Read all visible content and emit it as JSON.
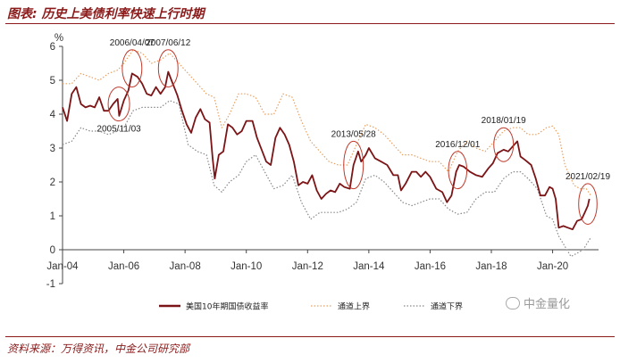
{
  "header": {
    "title": "图表: 历史上美债利率快速上行时期"
  },
  "footer": {
    "source": "资料来源：万得资讯，中金公司研究部"
  },
  "watermark": {
    "text": "中金量化",
    "icon": "wechat-icon"
  },
  "colors": {
    "series": "#7B1416",
    "upper": "#E8A060",
    "lower": "#888888",
    "circle": "#C0392B",
    "title": "#8B1A1A"
  },
  "chart_data": {
    "type": "line",
    "title": "历史上美债利率快速上行时期",
    "ylabel": "%",
    "ylim": [
      -1,
      6
    ],
    "yticks": [
      "-1",
      "0",
      "1",
      "2",
      "3",
      "4",
      "5",
      "6"
    ],
    "xlim": [
      2004.0,
      2021.5
    ],
    "xticks": [
      {
        "label": "Jan-04",
        "x": 2004
      },
      {
        "label": "Jan-06",
        "x": 2006
      },
      {
        "label": "Jan-08",
        "x": 2008
      },
      {
        "label": "Jan-10",
        "x": 2010
      },
      {
        "label": "Jan-12",
        "x": 2012
      },
      {
        "label": "Jan-14",
        "x": 2014
      },
      {
        "label": "Jan-16",
        "x": 2016
      },
      {
        "label": "Jan-18",
        "x": 2018
      },
      {
        "label": "Jan-20",
        "x": 2020
      }
    ],
    "series": [
      {
        "name": "美国10年期国债收益率",
        "style": "solid",
        "points": [
          [
            2004.0,
            4.2
          ],
          [
            2004.15,
            3.8
          ],
          [
            2004.3,
            4.6
          ],
          [
            2004.45,
            4.8
          ],
          [
            2004.6,
            4.3
          ],
          [
            2004.75,
            4.2
          ],
          [
            2004.9,
            4.25
          ],
          [
            2005.05,
            4.2
          ],
          [
            2005.2,
            4.5
          ],
          [
            2005.35,
            4.1
          ],
          [
            2005.5,
            4.1
          ],
          [
            2005.65,
            4.3
          ],
          [
            2005.8,
            4.45
          ],
          [
            2005.85,
            3.95
          ],
          [
            2006.0,
            4.4
          ],
          [
            2006.15,
            4.7
          ],
          [
            2006.27,
            5.2
          ],
          [
            2006.45,
            5.1
          ],
          [
            2006.6,
            4.9
          ],
          [
            2006.75,
            4.6
          ],
          [
            2006.9,
            4.55
          ],
          [
            2007.05,
            4.8
          ],
          [
            2007.2,
            4.6
          ],
          [
            2007.35,
            4.8
          ],
          [
            2007.45,
            5.25
          ],
          [
            2007.6,
            4.9
          ],
          [
            2007.75,
            4.55
          ],
          [
            2007.9,
            4.1
          ],
          [
            2008.05,
            3.7
          ],
          [
            2008.2,
            3.45
          ],
          [
            2008.35,
            3.9
          ],
          [
            2008.5,
            4.15
          ],
          [
            2008.65,
            3.85
          ],
          [
            2008.8,
            3.75
          ],
          [
            2008.9,
            2.7
          ],
          [
            2008.97,
            2.1
          ],
          [
            2009.1,
            2.8
          ],
          [
            2009.25,
            2.9
          ],
          [
            2009.4,
            3.7
          ],
          [
            2009.55,
            3.6
          ],
          [
            2009.7,
            3.4
          ],
          [
            2009.85,
            3.5
          ],
          [
            2010.0,
            3.8
          ],
          [
            2010.2,
            3.8
          ],
          [
            2010.35,
            3.3
          ],
          [
            2010.5,
            2.95
          ],
          [
            2010.65,
            2.6
          ],
          [
            2010.8,
            2.5
          ],
          [
            2010.95,
            3.3
          ],
          [
            2011.1,
            3.6
          ],
          [
            2011.25,
            3.4
          ],
          [
            2011.4,
            3.1
          ],
          [
            2011.55,
            2.6
          ],
          [
            2011.7,
            1.9
          ],
          [
            2011.85,
            2.0
          ],
          [
            2012.0,
            1.95
          ],
          [
            2012.15,
            2.2
          ],
          [
            2012.3,
            1.75
          ],
          [
            2012.45,
            1.5
          ],
          [
            2012.6,
            1.65
          ],
          [
            2012.75,
            1.75
          ],
          [
            2012.9,
            1.7
          ],
          [
            2013.05,
            1.95
          ],
          [
            2013.2,
            1.85
          ],
          [
            2013.38,
            1.8
          ],
          [
            2013.5,
            2.5
          ],
          [
            2013.65,
            2.9
          ],
          [
            2013.75,
            2.6
          ],
          [
            2013.9,
            2.8
          ],
          [
            2014.0,
            3.0
          ],
          [
            2014.2,
            2.7
          ],
          [
            2014.4,
            2.6
          ],
          [
            2014.6,
            2.5
          ],
          [
            2014.8,
            2.2
          ],
          [
            2014.95,
            2.2
          ],
          [
            2015.05,
            1.75
          ],
          [
            2015.2,
            1.95
          ],
          [
            2015.4,
            2.3
          ],
          [
            2015.55,
            2.3
          ],
          [
            2015.7,
            2.15
          ],
          [
            2015.85,
            2.3
          ],
          [
            2016.0,
            2.15
          ],
          [
            2016.2,
            1.8
          ],
          [
            2016.4,
            1.7
          ],
          [
            2016.55,
            1.4
          ],
          [
            2016.7,
            1.6
          ],
          [
            2016.85,
            2.3
          ],
          [
            2016.95,
            2.5
          ],
          [
            2017.1,
            2.45
          ],
          [
            2017.3,
            2.3
          ],
          [
            2017.5,
            2.2
          ],
          [
            2017.7,
            2.15
          ],
          [
            2017.9,
            2.4
          ],
          [
            2018.05,
            2.55
          ],
          [
            2018.2,
            2.85
          ],
          [
            2018.4,
            2.95
          ],
          [
            2018.55,
            2.9
          ],
          [
            2018.75,
            3.1
          ],
          [
            2018.85,
            3.2
          ],
          [
            2018.95,
            2.75
          ],
          [
            2019.1,
            2.65
          ],
          [
            2019.3,
            2.5
          ],
          [
            2019.45,
            2.1
          ],
          [
            2019.6,
            1.6
          ],
          [
            2019.75,
            1.6
          ],
          [
            2019.9,
            1.85
          ],
          [
            2020.0,
            1.8
          ],
          [
            2020.1,
            1.5
          ],
          [
            2020.2,
            0.65
          ],
          [
            2020.35,
            0.7
          ],
          [
            2020.5,
            0.65
          ],
          [
            2020.65,
            0.6
          ],
          [
            2020.8,
            0.85
          ],
          [
            2020.95,
            0.9
          ],
          [
            2021.05,
            1.1
          ],
          [
            2021.15,
            1.3
          ],
          [
            2021.2,
            1.5
          ]
        ]
      },
      {
        "name": "通道上界",
        "style": "dotted",
        "points": [
          [
            2004.0,
            4.9
          ],
          [
            2004.3,
            4.9
          ],
          [
            2004.6,
            5.2
          ],
          [
            2004.9,
            5.1
          ],
          [
            2005.2,
            5.0
          ],
          [
            2005.5,
            5.2
          ],
          [
            2005.8,
            5.3
          ],
          [
            2006.0,
            5.5
          ],
          [
            2006.3,
            5.9
          ],
          [
            2006.6,
            5.8
          ],
          [
            2006.9,
            5.5
          ],
          [
            2007.2,
            5.6
          ],
          [
            2007.5,
            5.8
          ],
          [
            2007.8,
            5.5
          ],
          [
            2008.1,
            5.2
          ],
          [
            2008.4,
            4.9
          ],
          [
            2008.7,
            4.6
          ],
          [
            2008.95,
            4.5
          ],
          [
            2009.2,
            3.6
          ],
          [
            2009.45,
            4.0
          ],
          [
            2009.75,
            4.6
          ],
          [
            2010.0,
            4.6
          ],
          [
            2010.3,
            4.5
          ],
          [
            2010.6,
            4.0
          ],
          [
            2010.9,
            4.0
          ],
          [
            2011.2,
            4.6
          ],
          [
            2011.5,
            4.5
          ],
          [
            2011.8,
            3.8
          ],
          [
            2012.1,
            3.2
          ],
          [
            2012.4,
            2.9
          ],
          [
            2012.7,
            2.6
          ],
          [
            2013.0,
            2.5
          ],
          [
            2013.3,
            2.5
          ],
          [
            2013.6,
            3.1
          ],
          [
            2013.9,
            3.7
          ],
          [
            2014.2,
            3.6
          ],
          [
            2014.5,
            3.4
          ],
          [
            2014.8,
            3.1
          ],
          [
            2015.1,
            2.8
          ],
          [
            2015.4,
            2.8
          ],
          [
            2015.7,
            2.7
          ],
          [
            2016.0,
            2.6
          ],
          [
            2016.3,
            2.6
          ],
          [
            2016.6,
            2.3
          ],
          [
            2016.9,
            2.9
          ],
          [
            2017.2,
            3.2
          ],
          [
            2017.5,
            3.0
          ],
          [
            2017.8,
            2.9
          ],
          [
            2018.1,
            3.2
          ],
          [
            2018.4,
            3.5
          ],
          [
            2018.7,
            3.6
          ],
          [
            2018.95,
            3.6
          ],
          [
            2019.2,
            3.4
          ],
          [
            2019.5,
            3.4
          ],
          [
            2019.8,
            3.6
          ],
          [
            2020.0,
            3.65
          ],
          [
            2020.2,
            3.4
          ],
          [
            2020.4,
            2.5
          ],
          [
            2020.7,
            1.9
          ],
          [
            2020.9,
            1.8
          ],
          [
            2021.1,
            1.8
          ],
          [
            2021.25,
            1.6
          ]
        ]
      },
      {
        "name": "通道下界",
        "style": "dotted",
        "points": [
          [
            2004.0,
            3.1
          ],
          [
            2004.3,
            3.2
          ],
          [
            2004.6,
            3.6
          ],
          [
            2004.9,
            3.5
          ],
          [
            2005.2,
            3.5
          ],
          [
            2005.5,
            3.4
          ],
          [
            2005.8,
            3.5
          ],
          [
            2006.0,
            3.6
          ],
          [
            2006.3,
            4.1
          ],
          [
            2006.6,
            4.2
          ],
          [
            2006.9,
            4.2
          ],
          [
            2007.2,
            4.2
          ],
          [
            2007.5,
            4.4
          ],
          [
            2007.8,
            4.3
          ],
          [
            2008.1,
            3.1
          ],
          [
            2008.4,
            2.9
          ],
          [
            2008.7,
            2.8
          ],
          [
            2008.95,
            1.9
          ],
          [
            2009.2,
            1.7
          ],
          [
            2009.45,
            2.0
          ],
          [
            2009.75,
            2.2
          ],
          [
            2010.0,
            2.6
          ],
          [
            2010.3,
            2.8
          ],
          [
            2010.6,
            2.3
          ],
          [
            2010.9,
            1.8
          ],
          [
            2011.2,
            1.9
          ],
          [
            2011.5,
            2.2
          ],
          [
            2011.8,
            1.4
          ],
          [
            2012.1,
            0.9
          ],
          [
            2012.4,
            1.1
          ],
          [
            2012.7,
            1.1
          ],
          [
            2013.0,
            1.1
          ],
          [
            2013.3,
            1.2
          ],
          [
            2013.6,
            1.4
          ],
          [
            2013.9,
            2.1
          ],
          [
            2014.2,
            2.2
          ],
          [
            2014.5,
            2.0
          ],
          [
            2014.8,
            1.7
          ],
          [
            2015.1,
            1.4
          ],
          [
            2015.4,
            1.3
          ],
          [
            2015.7,
            1.4
          ],
          [
            2016.0,
            1.5
          ],
          [
            2016.3,
            1.5
          ],
          [
            2016.6,
            1.2
          ],
          [
            2016.9,
            1.05
          ],
          [
            2017.2,
            1.1
          ],
          [
            2017.5,
            1.5
          ],
          [
            2017.8,
            1.7
          ],
          [
            2018.1,
            1.7
          ],
          [
            2018.4,
            2.1
          ],
          [
            2018.7,
            2.3
          ],
          [
            2018.95,
            2.3
          ],
          [
            2019.2,
            2.1
          ],
          [
            2019.5,
            1.8
          ],
          [
            2019.8,
            1.0
          ],
          [
            2020.0,
            0.9
          ],
          [
            2020.2,
            0.4
          ],
          [
            2020.4,
            0.1
          ],
          [
            2020.6,
            -0.2
          ],
          [
            2020.8,
            -0.1
          ],
          [
            2021.0,
            0.0
          ],
          [
            2021.2,
            0.3
          ],
          [
            2021.25,
            0.35
          ]
        ]
      }
    ],
    "annotations": [
      {
        "label": "2005/11/03",
        "x": 2005.84,
        "y": 4.3,
        "rx": 0.35,
        "ry": 0.5,
        "label_pos": "below"
      },
      {
        "label": "2006/04/07",
        "x": 2006.27,
        "y": 5.35,
        "rx": 0.32,
        "ry": 0.55,
        "label_pos": "above"
      },
      {
        "label": "2007/06/12",
        "x": 2007.45,
        "y": 5.35,
        "rx": 0.32,
        "ry": 0.55,
        "label_pos": "above"
      },
      {
        "label": "2013/05/28",
        "x": 2013.5,
        "y": 2.5,
        "rx": 0.32,
        "ry": 0.7,
        "label_pos": "above"
      },
      {
        "label": "2016/12/01",
        "x": 2016.9,
        "y": 2.35,
        "rx": 0.3,
        "ry": 0.55,
        "label_pos": "above"
      },
      {
        "label": "2018/01/19",
        "x": 2018.4,
        "y": 3.1,
        "rx": 0.32,
        "ry": 0.5,
        "label_pos": "above"
      },
      {
        "label": "2021/02/19",
        "x": 2021.15,
        "y": 1.35,
        "rx": 0.3,
        "ry": 0.6,
        "label_pos": "above"
      }
    ]
  }
}
